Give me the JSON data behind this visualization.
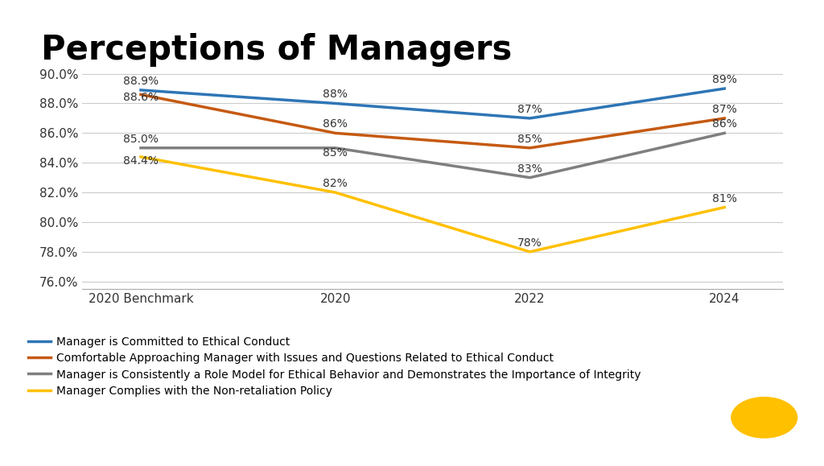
{
  "title": "Perceptions of Managers",
  "categories": [
    "2020 Benchmark",
    "2020",
    "2022",
    "2024"
  ],
  "series": [
    {
      "label": "Manager is Committed to Ethical Conduct",
      "color": "#2E75B6",
      "values": [
        88.9,
        88.0,
        87.0,
        89.0
      ],
      "labels": [
        "88.9%",
        "88%",
        "87%",
        "89%"
      ],
      "label_offsets": [
        0.22,
        0.22,
        0.22,
        0.22
      ]
    },
    {
      "label": "Comfortable Approaching Manager with Issues and Questions Related to Ethical Conduct",
      "color": "#C55A11",
      "values": [
        88.6,
        86.0,
        85.0,
        87.0
      ],
      "labels": [
        "88.6%",
        "86%",
        "85%",
        "87%"
      ],
      "label_offsets": [
        -0.6,
        0.22,
        0.22,
        0.22
      ]
    },
    {
      "label": "Manager is Consistently a Role Model for Ethical Behavior and Demonstrates the Importance of Integrity",
      "color": "#7F7F7F",
      "values": [
        85.0,
        85.0,
        83.0,
        86.0
      ],
      "labels": [
        "85.0%",
        "85%",
        "83%",
        "86%"
      ],
      "label_offsets": [
        0.22,
        -0.7,
        0.22,
        0.22
      ]
    },
    {
      "label": "Manager Complies with the Non-retaliation Policy",
      "color": "#FFC000",
      "values": [
        84.4,
        82.0,
        78.0,
        81.0
      ],
      "labels": [
        "84.4%",
        "82%",
        "78%",
        "81%"
      ],
      "label_offsets": [
        -0.65,
        0.22,
        0.22,
        0.22
      ]
    }
  ],
  "ylim": [
    75.5,
    91.2
  ],
  "yticks": [
    76.0,
    78.0,
    80.0,
    82.0,
    84.0,
    86.0,
    88.0,
    90.0
  ],
  "ytick_labels": [
    "76.0%",
    "78.0%",
    "80.0%",
    "82.0%",
    "84.0%",
    "86.0%",
    "88.0%",
    "90.0%"
  ],
  "background_color": "#FFFFFF",
  "title_fontsize": 30,
  "tick_fontsize": 11,
  "label_fontsize": 10,
  "legend_fontsize": 10,
  "line_width": 2.5,
  "ucf_bar_color": "#FFC000",
  "ucf_bg_color": "#1C1C1C"
}
